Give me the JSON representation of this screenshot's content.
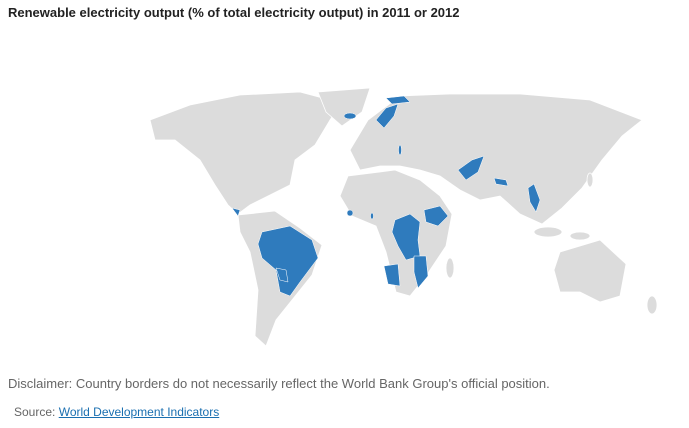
{
  "header": {
    "title": "Renewable electricity output (% of total electricity output) in 2011 or 2012"
  },
  "footer": {
    "disclaimer": "Disclaimer: Country borders do not necessarily reflect the World Bank Group's official position.",
    "source_label": "Source:",
    "source_link": "World Development Indicators"
  }
}
